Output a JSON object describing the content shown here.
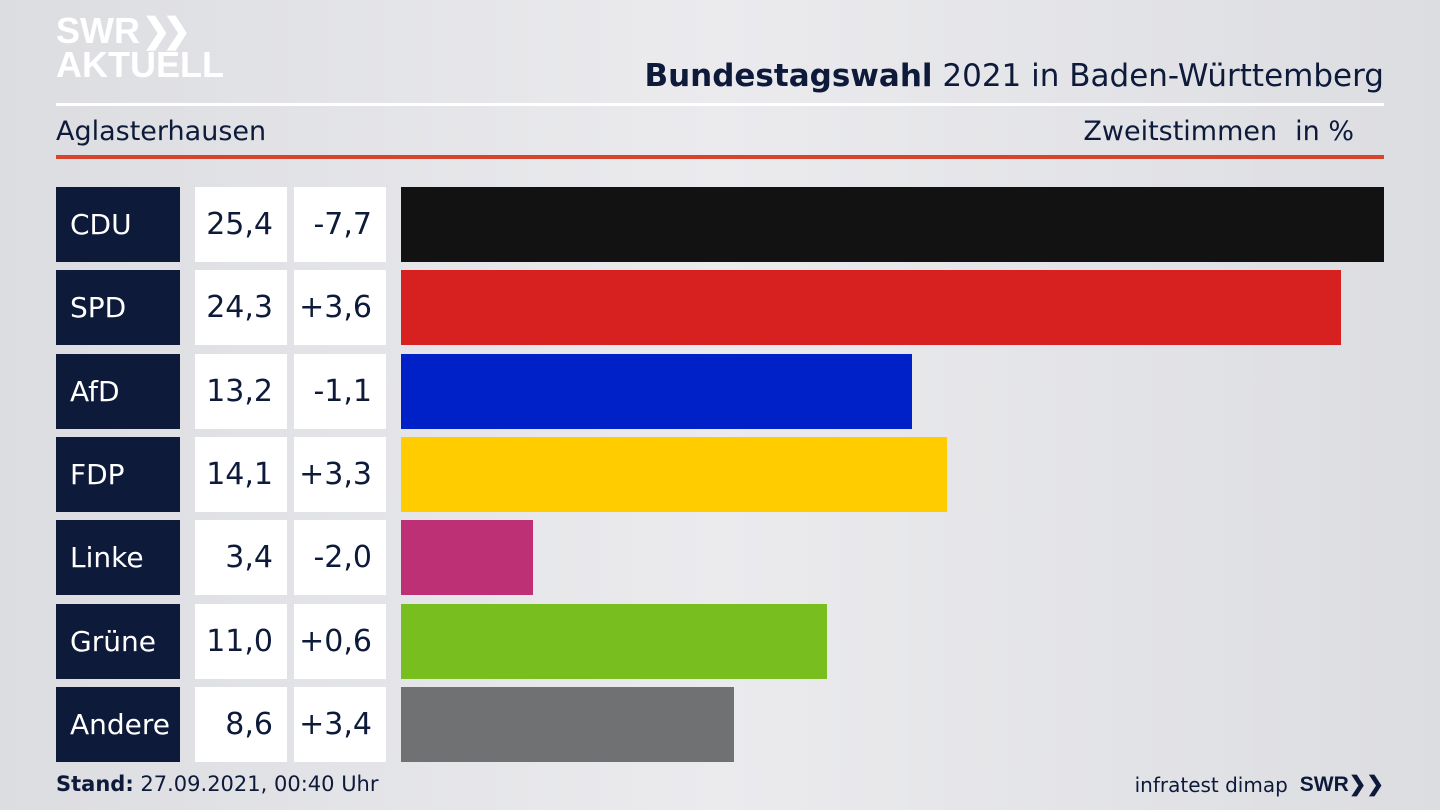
{
  "logo": {
    "line1": "SWR",
    "line2": "AKTUELL"
  },
  "header": {
    "title_bold": "Bundestagswahl",
    "title_rest": "2021 in Baden-Württemberg",
    "region": "Aglasterhausen",
    "measure": "Zweitstimmen",
    "unit": "in %"
  },
  "chart_data": {
    "type": "bar",
    "orientation": "horizontal",
    "categories": [
      "CDU",
      "SPD",
      "AfD",
      "FDP",
      "Linke",
      "Grüne",
      "Andere"
    ],
    "values": [
      25.4,
      24.3,
      13.2,
      14.1,
      3.4,
      11.0,
      8.6
    ],
    "value_labels": [
      "25,4",
      "24,3",
      "13,2",
      "14,1",
      "3,4",
      "11,0",
      "8,6"
    ],
    "change_labels": [
      "-7,7",
      "+3,6",
      "-1,1",
      "+3,3",
      "-2,0",
      "+0,6",
      "+3,4"
    ],
    "colors": [
      "#121212",
      "#d72020",
      "#0020c8",
      "#ffcc00",
      "#be3075",
      "#78be1e",
      "#707173"
    ],
    "xlim": [
      0,
      25.4
    ]
  },
  "footer": {
    "stand_label": "Stand:",
    "stand_value": "27.09.2021, 00:40 Uhr",
    "source": "infratest dimap",
    "brand": "SWR"
  }
}
